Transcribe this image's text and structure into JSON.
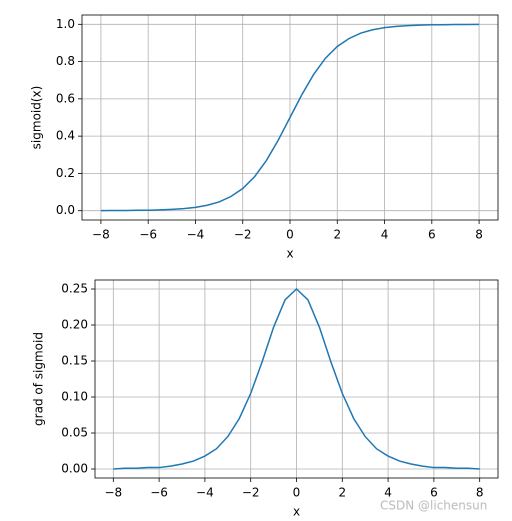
{
  "chart_data": [
    {
      "type": "line",
      "xlabel": "x",
      "ylabel": "sigmoid(x)",
      "color": "#1f77b4",
      "grid": true,
      "x": [
        -8,
        -7.5,
        -7,
        -6.5,
        -6,
        -5.5,
        -5,
        -4.5,
        -4,
        -3.5,
        -3,
        -2.5,
        -2,
        -1.5,
        -1,
        -0.5,
        0,
        0.5,
        1,
        1.5,
        2,
        2.5,
        3,
        3.5,
        4,
        4.5,
        5,
        5.5,
        6,
        6.5,
        7,
        7.5,
        8
      ],
      "values": [
        0.0,
        0.001,
        0.001,
        0.002,
        0.002,
        0.004,
        0.007,
        0.011,
        0.018,
        0.029,
        0.047,
        0.076,
        0.119,
        0.182,
        0.269,
        0.378,
        0.5,
        0.622,
        0.731,
        0.818,
        0.881,
        0.924,
        0.953,
        0.971,
        0.982,
        0.989,
        0.993,
        0.996,
        0.998,
        0.998,
        0.999,
        0.999,
        1.0
      ],
      "xlim": [
        -8.8,
        8.8
      ],
      "ylim": [
        -0.05,
        1.05
      ],
      "xticks": [
        {
          "value": -8,
          "label": "−8"
        },
        {
          "value": -6,
          "label": "−6"
        },
        {
          "value": -4,
          "label": "−4"
        },
        {
          "value": -2,
          "label": "−2"
        },
        0,
        2,
        4,
        6,
        8
      ],
      "yticks": [
        {
          "value": 0,
          "label": "0.0"
        },
        0.2,
        0.4,
        0.6,
        0.8,
        {
          "value": 1,
          "label": "1.0"
        }
      ]
    },
    {
      "type": "line",
      "xlabel": "x",
      "ylabel": "grad of sigmoid",
      "color": "#1f77b4",
      "grid": true,
      "x": [
        -8,
        -7.5,
        -7,
        -6.5,
        -6,
        -5.5,
        -5,
        -4.5,
        -4,
        -3.5,
        -3,
        -2.5,
        -2,
        -1.5,
        -1,
        -0.5,
        0,
        0.5,
        1,
        1.5,
        2,
        2.5,
        3,
        3.5,
        4,
        4.5,
        5,
        5.5,
        6,
        6.5,
        7,
        7.5,
        8
      ],
      "values": [
        0.0,
        0.001,
        0.001,
        0.002,
        0.002,
        0.004,
        0.007,
        0.011,
        0.018,
        0.028,
        0.045,
        0.07,
        0.105,
        0.149,
        0.197,
        0.235,
        0.25,
        0.235,
        0.197,
        0.149,
        0.105,
        0.07,
        0.045,
        0.028,
        0.018,
        0.011,
        0.007,
        0.004,
        0.002,
        0.002,
        0.001,
        0.001,
        0.0
      ],
      "xlim": [
        -8.8,
        8.8
      ],
      "ylim": [
        -0.0125,
        0.2625
      ],
      "xticks": [
        {
          "value": -8,
          "label": "−8"
        },
        {
          "value": -6,
          "label": "−6"
        },
        {
          "value": -4,
          "label": "−4"
        },
        {
          "value": -2,
          "label": "−2"
        },
        0,
        2,
        4,
        6,
        8
      ],
      "yticks": [
        {
          "value": 0,
          "label": "0.00"
        },
        {
          "value": 0.05,
          "label": "0.05"
        },
        {
          "value": 0.1,
          "label": "0.10"
        },
        {
          "value": 0.15,
          "label": "0.15"
        },
        {
          "value": 0.2,
          "label": "0.20"
        },
        {
          "value": 0.25,
          "label": "0.25"
        }
      ]
    }
  ],
  "watermark": "CSDN @lichensun"
}
